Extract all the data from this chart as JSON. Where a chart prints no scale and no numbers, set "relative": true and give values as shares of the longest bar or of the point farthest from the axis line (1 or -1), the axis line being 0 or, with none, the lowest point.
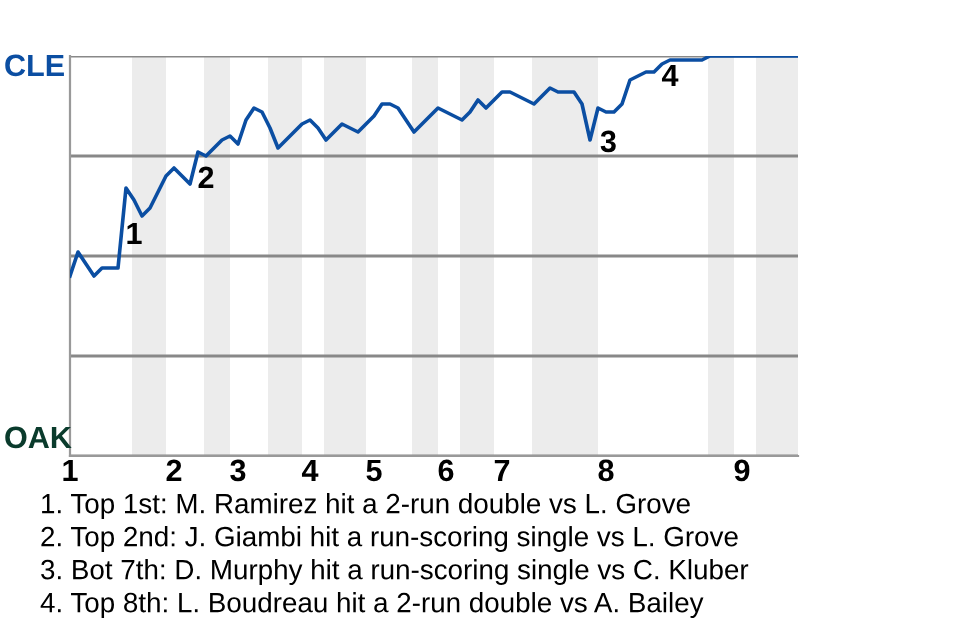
{
  "chart_data": {
    "type": "line",
    "relative": true,
    "categories": [
      "1",
      null,
      null,
      null,
      null,
      null,
      null,
      null,
      null,
      null,
      null,
      null,
      null,
      "2",
      null,
      null,
      null,
      null,
      null,
      null,
      null,
      "3",
      null,
      null,
      null,
      null,
      null,
      null,
      null,
      null,
      "4",
      null,
      null,
      null,
      null,
      null,
      null,
      null,
      "5",
      null,
      null,
      null,
      null,
      null,
      null,
      null,
      null,
      "6",
      null,
      null,
      null,
      null,
      null,
      null,
      "7",
      null,
      null,
      null,
      null,
      null,
      null,
      null,
      null,
      null,
      null,
      null,
      null,
      "8",
      null,
      null,
      null,
      null,
      null,
      null,
      null,
      null,
      null,
      null,
      null,
      null,
      null,
      null,
      null,
      null,
      "9",
      null,
      null,
      null,
      null,
      null,
      null,
      null
    ],
    "series": [
      {
        "color": "#0b4ea2",
        "values": [
          0.45,
          0.51,
          0.48,
          0.45,
          0.47,
          0.47,
          0.47,
          0.67,
          0.64,
          0.6,
          0.62,
          0.66,
          0.7,
          0.72,
          0.7,
          0.68,
          0.76,
          0.75,
          0.77,
          0.79,
          0.8,
          0.78,
          0.84,
          0.87,
          0.86,
          0.82,
          0.77,
          0.79,
          0.81,
          0.83,
          0.84,
          0.82,
          0.79,
          0.81,
          0.83,
          0.82,
          0.81,
          0.83,
          0.85,
          0.88,
          0.88,
          0.87,
          0.84,
          0.81,
          0.83,
          0.85,
          0.87,
          0.86,
          0.85,
          0.84,
          0.86,
          0.89,
          0.87,
          0.89,
          0.91,
          0.91,
          0.9,
          0.89,
          0.88,
          0.9,
          0.92,
          0.91,
          0.91,
          0.91,
          0.88,
          0.79,
          0.87,
          0.86,
          0.86,
          0.88,
          0.94,
          0.95,
          0.96,
          0.96,
          0.98,
          0.99,
          0.99,
          0.99,
          0.99,
          0.99,
          1,
          1,
          1,
          1,
          1,
          1,
          1,
          1,
          1,
          1,
          1,
          1
        ]
      }
    ],
    "grid": "y",
    "annotations": [
      "CLE",
      "OAK",
      "1",
      "2",
      "3",
      "4",
      "1. Top 1st: M. Ramirez hit a 2-run double vs L. Grove",
      "2. Top 2nd: J. Giambi hit a run-scoring single vs L. Grove",
      "3. Bot 7th: D. Murphy hit a run-scoring single vs C. Kluber",
      "4. Top 8th: L. Boudreau hit a 2-run double vs A. Bailey"
    ]
  }
}
